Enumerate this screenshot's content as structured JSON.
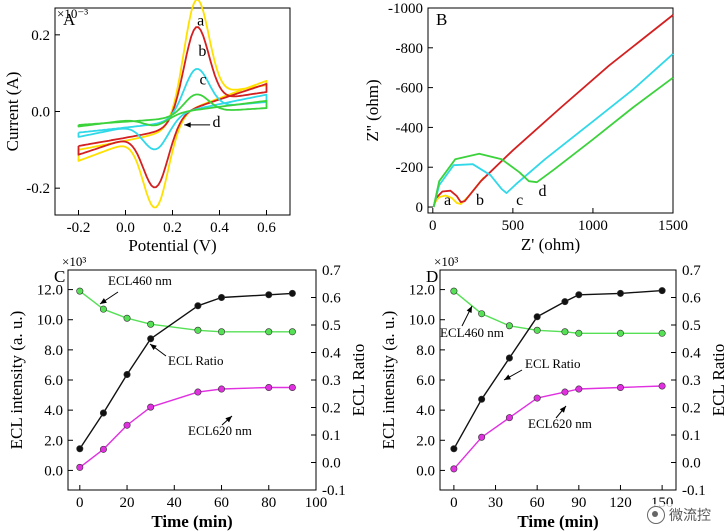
{
  "watermark": {
    "text": "微流控"
  },
  "chart_data": [
    {
      "panel": "A",
      "type": "line",
      "xlabel": "Potential (V)",
      "ylabel": "Current (A)",
      "y_multiplier": "×10⁻³",
      "xlim": [
        -0.3,
        0.7
      ],
      "ylim": [
        -0.27,
        0.27
      ],
      "xticks": [
        -0.2,
        0.0,
        0.2,
        0.4,
        0.6
      ],
      "xtick_labels": [
        "-0.2",
        "0.0",
        "0.2",
        "0.4",
        "0.6"
      ],
      "yticks": [
        -0.2,
        0.0,
        0.2
      ],
      "ytick_labels": [
        "-0.2",
        "0.0",
        "0.2"
      ],
      "series": [
        {
          "name": "a",
          "color": "#ffe000",
          "ipa": 0.24,
          "ipc": -0.24,
          "base": 0.1
        },
        {
          "name": "b",
          "color": "#d42020",
          "ipa": 0.18,
          "ipc": -0.19,
          "base": 0.09
        },
        {
          "name": "c",
          "color": "#30d8e8",
          "ipa": 0.09,
          "ipc": -0.095,
          "base": 0.055
        },
        {
          "name": "d",
          "color": "#3cd23c",
          "ipa": 0.035,
          "ipc": -0.035,
          "base": 0.035
        }
      ]
    },
    {
      "panel": "B",
      "type": "line",
      "xlabel": "Z' (ohm)",
      "ylabel": "Z'' (ohm)",
      "xlim": [
        -30,
        1500
      ],
      "ylim": [
        -1000,
        30
      ],
      "y_inverted": true,
      "xticks": [
        0,
        500,
        1000,
        1500
      ],
      "xtick_labels": [
        "0",
        "500",
        "1000",
        "1500"
      ],
      "yticks": [
        0,
        -200,
        -400,
        -600,
        -800,
        -1000
      ],
      "ytick_labels": [
        "0",
        "-200",
        "-400",
        "-600",
        "-800",
        "-1000"
      ],
      "series": [
        {
          "name": "a",
          "color": "#ffe000",
          "points": [
            [
              5,
              0
            ],
            [
              15,
              -25
            ],
            [
              40,
              -50
            ],
            [
              80,
              -58
            ],
            [
              120,
              -45
            ],
            [
              150,
              -20
            ],
            [
              175,
              -15
            ],
            [
              230,
              -60
            ],
            [
              320,
              -150
            ]
          ]
        },
        {
          "name": "b",
          "color": "#d42020",
          "points": [
            [
              5,
              0
            ],
            [
              20,
              -45
            ],
            [
              60,
              -78
            ],
            [
              110,
              -82
            ],
            [
              150,
              -55
            ],
            [
              175,
              -25
            ],
            [
              200,
              -30
            ],
            [
              300,
              -130
            ],
            [
              500,
              -285
            ],
            [
              800,
              -500
            ],
            [
              1100,
              -710
            ],
            [
              1500,
              -965
            ]
          ]
        },
        {
          "name": "c",
          "color": "#30d8e8",
          "points": [
            [
              5,
              0
            ],
            [
              40,
              -110
            ],
            [
              130,
              -210
            ],
            [
              250,
              -215
            ],
            [
              360,
              -160
            ],
            [
              430,
              -90
            ],
            [
              460,
              -70
            ],
            [
              520,
              -115
            ],
            [
              700,
              -240
            ],
            [
              1000,
              -430
            ],
            [
              1250,
              -590
            ],
            [
              1500,
              -770
            ]
          ]
        },
        {
          "name": "d",
          "color": "#3cd23c",
          "points": [
            [
              5,
              0
            ],
            [
              40,
              -130
            ],
            [
              140,
              -240
            ],
            [
              290,
              -268
            ],
            [
              430,
              -240
            ],
            [
              540,
              -175
            ],
            [
              600,
              -130
            ],
            [
              650,
              -125
            ],
            [
              760,
              -190
            ],
            [
              1000,
              -340
            ],
            [
              1250,
              -500
            ],
            [
              1500,
              -650
            ]
          ]
        }
      ]
    },
    {
      "panel": "C",
      "type": "line",
      "xlabel": "Time (min)",
      "ylabel_left": "ECL intensity (a. u.)",
      "ylabel_right": "ECL Ratio",
      "y_multiplier": "×10³",
      "xlim": [
        -5,
        100
      ],
      "ylim_left": [
        -1.3,
        13.3
      ],
      "ylim_right": [
        -0.1,
        0.7
      ],
      "xticks": [
        0,
        20,
        40,
        60,
        80,
        100
      ],
      "xtick_labels": [
        "0",
        "20",
        "40",
        "60",
        "80",
        "100"
      ],
      "yticks_left": [
        0,
        2,
        4,
        6,
        8,
        10,
        12
      ],
      "ytick_labels_left": [
        "0.0",
        "2.0",
        "4.0",
        "6.0",
        "8.0",
        "10.0",
        "12.0"
      ],
      "yticks_right": [
        -0.1,
        0.0,
        0.1,
        0.2,
        0.3,
        0.4,
        0.5,
        0.6,
        0.7
      ],
      "ytick_labels_right": [
        "-0.1",
        "0.0",
        "0.1",
        "0.2",
        "0.3",
        "0.4",
        "0.5",
        "0.6",
        "0.7"
      ],
      "x": [
        0,
        10,
        20,
        30,
        50,
        60,
        80,
        90
      ],
      "series": [
        {
          "name": "ECL460 nm",
          "color": "#55e055",
          "axis": "left",
          "values": [
            11.9,
            10.7,
            10.1,
            9.7,
            9.3,
            9.2,
            9.2,
            9.2
          ]
        },
        {
          "name": "ECL Ratio",
          "color": "#111111",
          "axis": "right",
          "values": [
            0.05,
            0.18,
            0.32,
            0.45,
            0.57,
            0.6,
            0.61,
            0.615
          ]
        },
        {
          "name": "ECL620 nm",
          "color": "#e030e0",
          "axis": "left",
          "values": [
            0.2,
            1.4,
            3.0,
            4.2,
            5.2,
            5.4,
            5.5,
            5.5
          ]
        }
      ]
    },
    {
      "panel": "D",
      "type": "line",
      "xlabel": "Time (min)",
      "ylabel_left": "ECL intensity (a. u.)",
      "ylabel_right": "ECL Ratio",
      "y_multiplier": "×10³",
      "xlim": [
        -10,
        160
      ],
      "ylim_left": [
        -1.3,
        13.3
      ],
      "ylim_right": [
        -0.1,
        0.7
      ],
      "xticks": [
        0,
        30,
        60,
        90,
        120,
        150
      ],
      "xtick_labels": [
        "0",
        "30",
        "60",
        "90",
        "120",
        "150"
      ],
      "yticks_left": [
        0,
        2,
        4,
        6,
        8,
        10,
        12
      ],
      "ytick_labels_left": [
        "0.0",
        "2.0",
        "4.0",
        "6.0",
        "8.0",
        "10.0",
        "12.0"
      ],
      "yticks_right": [
        -0.1,
        0.0,
        0.1,
        0.2,
        0.3,
        0.4,
        0.5,
        0.6,
        0.7
      ],
      "ytick_labels_right": [
        "-0.1",
        "0.0",
        "0.1",
        "0.2",
        "0.3",
        "0.4",
        "0.5",
        "0.6",
        "0.7"
      ],
      "x": [
        0,
        20,
        40,
        60,
        80,
        90,
        120,
        150
      ],
      "series": [
        {
          "name": "ECL460 nm",
          "color": "#55e055",
          "axis": "left",
          "values": [
            11.9,
            10.4,
            9.6,
            9.3,
            9.2,
            9.1,
            9.1,
            9.1
          ]
        },
        {
          "name": "ECL Ratio",
          "color": "#111111",
          "axis": "right",
          "values": [
            0.05,
            0.23,
            0.38,
            0.53,
            0.585,
            0.61,
            0.615,
            0.625
          ]
        },
        {
          "name": "ECL620 nm",
          "color": "#e030e0",
          "axis": "left",
          "values": [
            0.1,
            2.2,
            3.5,
            4.8,
            5.2,
            5.4,
            5.5,
            5.6
          ]
        }
      ]
    }
  ]
}
